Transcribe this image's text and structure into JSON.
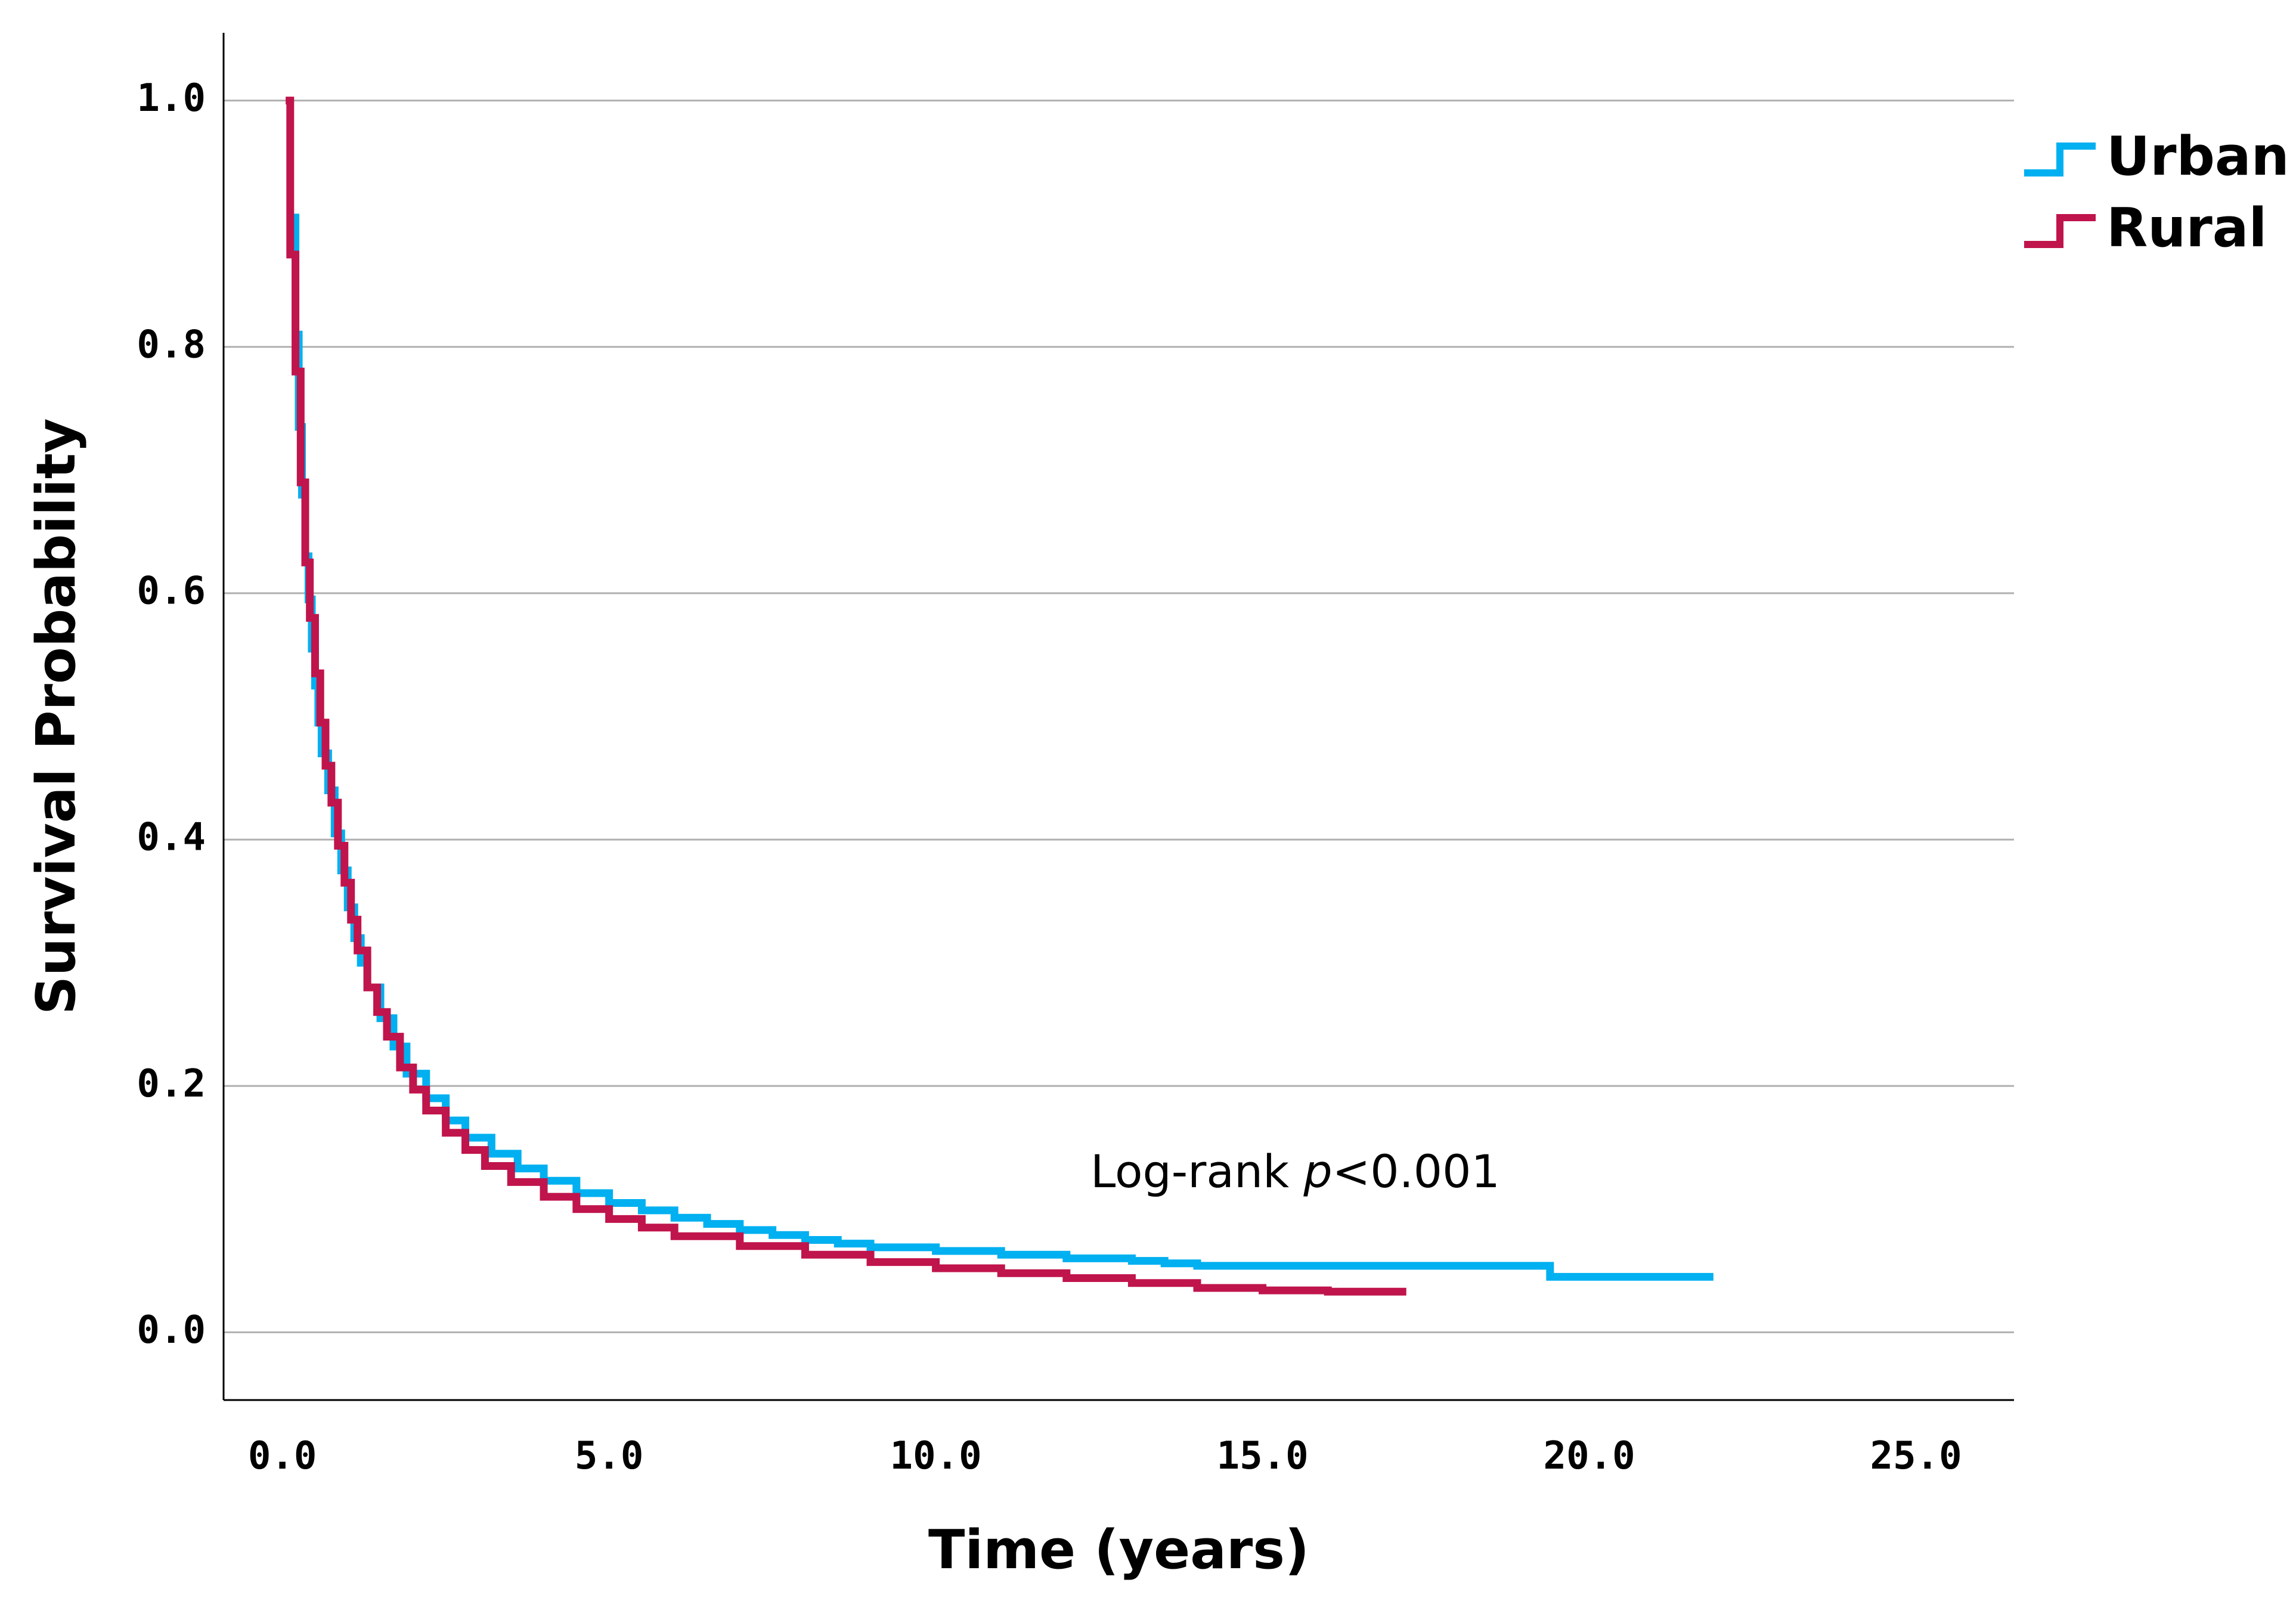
{
  "chart_data": {
    "type": "line",
    "subtype": "kaplan-meier-step",
    "title": "",
    "xlabel": "Time (years)",
    "ylabel": "Survival Probability",
    "xlim": [
      -0.9,
      26.5
    ],
    "ylim": [
      -0.055,
      1.055
    ],
    "xticks": [
      0.0,
      5.0,
      10.0,
      15.0,
      20.0,
      25.0
    ],
    "xtick_labels": [
      "0.0",
      "5.0",
      "10.0",
      "15.0",
      "20.0",
      "25.0"
    ],
    "yticks": [
      0.0,
      0.2,
      0.4,
      0.6,
      0.8,
      1.0
    ],
    "ytick_labels": [
      "0.0",
      "0.2",
      "0.4",
      "0.6",
      "0.8",
      "1.0"
    ],
    "grid": "horizontal",
    "legend_position": "top-right",
    "annotation": {
      "text_prefix": "Log-rank ",
      "text_italic": "p",
      "text_suffix": "<0.001",
      "x": 15.5,
      "y": 0.128
    },
    "series": [
      {
        "name": "Urban",
        "color": "#00B0F0",
        "x": [
          0.15,
          0.2,
          0.25,
          0.3,
          0.35,
          0.4,
          0.45,
          0.5,
          0.55,
          0.6,
          0.7,
          0.8,
          0.9,
          1.0,
          1.1,
          1.2,
          1.3,
          1.5,
          1.7,
          1.9,
          2.2,
          2.5,
          2.8,
          3.2,
          3.6,
          4.0,
          4.5,
          5.0,
          5.5,
          6.0,
          6.5,
          7.0,
          7.5,
          8.0,
          8.5,
          9.0,
          10.0,
          11.0,
          12.0,
          13.0,
          13.5,
          14.0,
          15.0,
          16.0,
          17.0,
          18.0,
          19.4,
          21.9
        ],
        "y": [
          0.905,
          0.81,
          0.735,
          0.68,
          0.63,
          0.595,
          0.555,
          0.525,
          0.495,
          0.47,
          0.44,
          0.405,
          0.375,
          0.345,
          0.32,
          0.3,
          0.28,
          0.255,
          0.232,
          0.21,
          0.19,
          0.172,
          0.158,
          0.145,
          0.133,
          0.123,
          0.113,
          0.105,
          0.099,
          0.093,
          0.088,
          0.083,
          0.079,
          0.075,
          0.072,
          0.069,
          0.066,
          0.063,
          0.06,
          0.058,
          0.056,
          0.054,
          0.054,
          0.054,
          0.054,
          0.054,
          0.045,
          0.045
        ]
      },
      {
        "name": "Rural",
        "color": "#C0144C",
        "x": [
          0.05,
          0.12,
          0.2,
          0.28,
          0.35,
          0.42,
          0.5,
          0.58,
          0.66,
          0.75,
          0.85,
          0.95,
          1.05,
          1.15,
          1.3,
          1.45,
          1.6,
          1.8,
          2.0,
          2.2,
          2.5,
          2.8,
          3.1,
          3.5,
          4.0,
          4.5,
          5.0,
          5.5,
          6.0,
          7.0,
          8.0,
          9.0,
          10.0,
          11.0,
          12.0,
          13.0,
          14.0,
          15.0,
          16.0,
          17.2
        ],
        "y": [
          1.0,
          0.875,
          0.78,
          0.69,
          0.625,
          0.58,
          0.535,
          0.495,
          0.46,
          0.43,
          0.395,
          0.365,
          0.335,
          0.31,
          0.28,
          0.26,
          0.24,
          0.215,
          0.197,
          0.18,
          0.162,
          0.148,
          0.135,
          0.122,
          0.11,
          0.1,
          0.092,
          0.085,
          0.078,
          0.07,
          0.063,
          0.057,
          0.052,
          0.048,
          0.044,
          0.04,
          0.036,
          0.034,
          0.033,
          0.033
        ]
      }
    ]
  }
}
